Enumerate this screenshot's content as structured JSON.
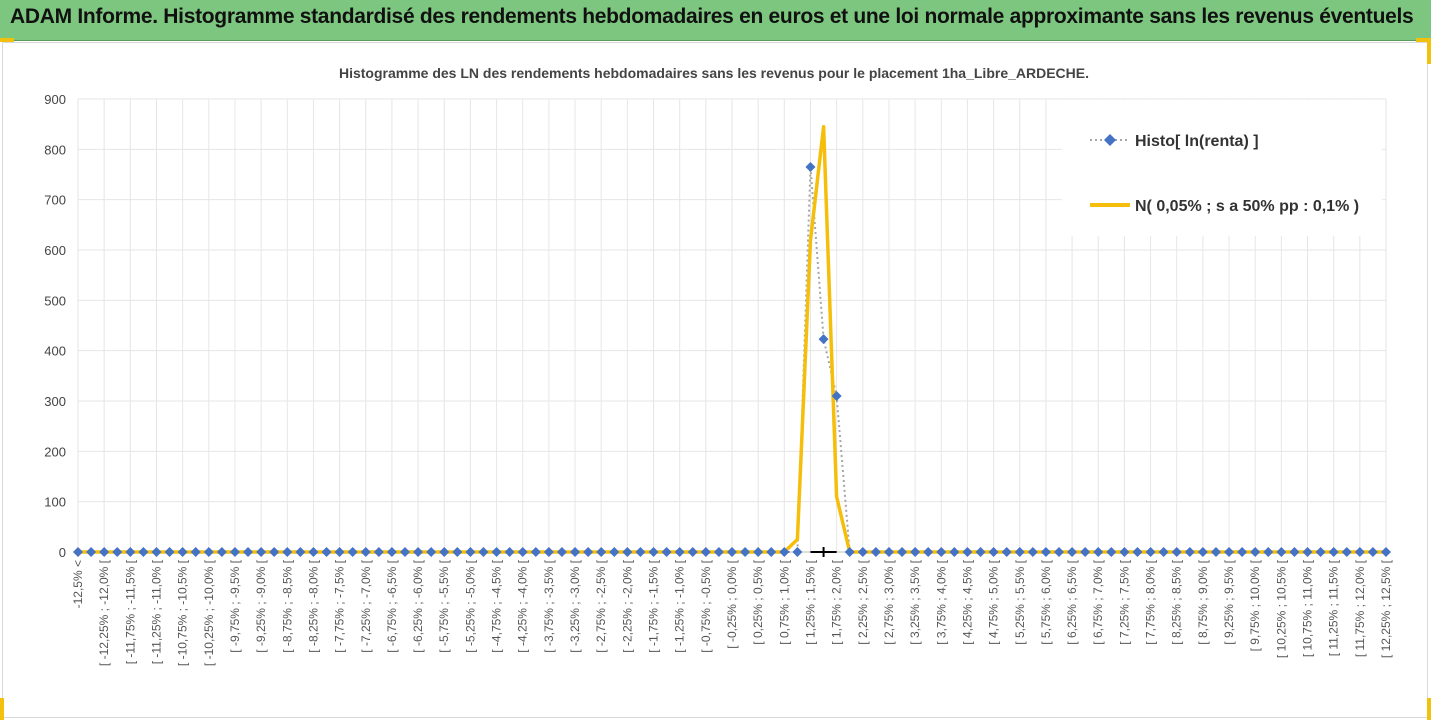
{
  "header": {
    "title": "ADAM Informe. Histogramme standardisé des rendements hebdomadaires en euros et une loi normale approximante sans les revenus éventuels"
  },
  "colors": {
    "header_bg": "#7dc67f",
    "histo_series": "#4472c4",
    "histo_line": "#a6a6a6",
    "normal_series": "#f5be0b",
    "corner_accent": "#f2c10e"
  },
  "chart_data": {
    "type": "line",
    "title": "Histogramme des LN des rendements hebdomadaires sans les revenus pour le placement 1ha_Libre_ARDECHE.",
    "xlabel": "",
    "ylabel": "",
    "ylim": [
      0,
      900
    ],
    "yticks": [
      "900",
      "800",
      "700",
      "600",
      "500",
      "400",
      "300",
      "200",
      "100",
      "0"
    ],
    "grid": true,
    "legend_position": "top-right",
    "categories": [
      "-12,5% <",
      "[ -12,25% ; -12,0% [",
      "[ -11,75% ; -11,5% [",
      "[ -11,25% ; -11,0% [",
      "[ -10,75% ; -10,5% [",
      "[ -10,25% ; -10,0% [",
      "[ -9,75% ; -9,5% [",
      "[ -9,25% ; -9,0% [",
      "[ -8,75% ; -8,5% [",
      "[ -8,25% ; -8,0% [",
      "[ -7,75% ; -7,5% [",
      "[ -7,25% ; -7,0% [",
      "[ -6,75% ; -6,5% [",
      "[ -6,25% ; -6,0% [",
      "[ -5,75% ; -5,5% [",
      "[ -5,25% ; -5,0% [",
      "[ -4,75% ; -4,5% [",
      "[ -4,25% ; -4,0% [",
      "[ -3,75% ; -3,5% [",
      "[ -3,25% ; -3,0% [",
      "[ -2,75% ; -2,5% [",
      "[ -2,25% ; -2,0% [",
      "[ -1,75% ; -1,5% [",
      "[ -1,25% ; -1,0% [",
      "[ -0,75% ; -0,5% [",
      "[ -0,25% ; 0,0% [",
      "[ 0,25% ; 0,5% [",
      "[ 0,75% ; 1,0% [",
      "[ 1,25% ; 1,5% [",
      "[ 1,75% ; 2,0% [",
      "[ 2,25% ; 2,5% [",
      "[ 2,75% ; 3,0% [",
      "[ 3,25% ; 3,5% [",
      "[ 3,75% ; 4,0% [",
      "[ 4,25% ; 4,5% [",
      "[ 4,75% ; 5,0% [",
      "[ 5,25% ; 5,5% [",
      "[ 5,75% ; 6,0% [",
      "[ 6,25% ; 6,5% [",
      "[ 6,75% ; 7,0% [",
      "[ 7,25% ; 7,5% [",
      "[ 7,75% ; 8,0% [",
      "[ 8,25% ; 8,5% [",
      "[ 8,75% ; 9,0% [",
      "[ 9,25% ; 9,5% [",
      "[ 9,75% ; 10,0% [",
      "[ 10,25% ; 10,5% [",
      "[ 10,75% ; 11,0% [",
      "[ 11,25% ; 11,5% [",
      "[ 11,75% ; 12,0% [",
      "[ 12,25% ; 12,5% ["
    ],
    "x_points": 101,
    "series": [
      {
        "name": "Histo[ ln(renta) ]",
        "style": "dotted-line-diamond",
        "color": "#4472c4",
        "nonzero": [
          {
            "index": 55,
            "value": 0
          },
          {
            "index": 56,
            "value": 765
          },
          {
            "index": 57,
            "value": 423
          },
          {
            "index": 58,
            "value": 310
          },
          {
            "index": 59,
            "value": 0
          }
        ]
      },
      {
        "name": "N( 0,05% ; s a 50% pp : 0,1% )",
        "style": "solid-line",
        "color": "#f5be0b",
        "nonzero": [
          {
            "index": 55,
            "value": 25
          },
          {
            "index": 56,
            "value": 620
          },
          {
            "index": 57,
            "value": 845
          },
          {
            "index": 58,
            "value": 110
          },
          {
            "index": 59,
            "value": 0
          }
        ]
      }
    ]
  }
}
